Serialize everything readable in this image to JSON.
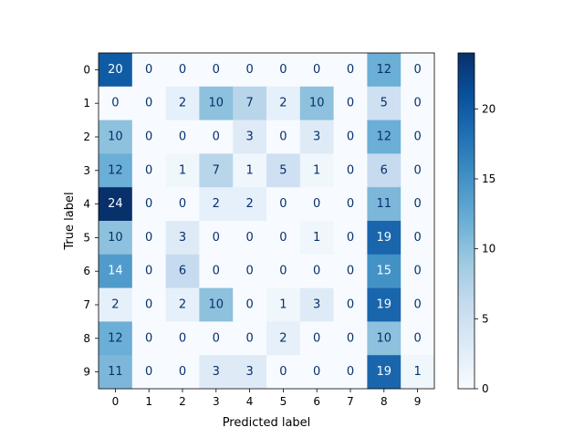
{
  "chart_data": {
    "type": "heatmap",
    "xlabel": "Predicted label",
    "ylabel": "True label",
    "x_categories": [
      "0",
      "1",
      "2",
      "3",
      "4",
      "5",
      "6",
      "7",
      "8",
      "9"
    ],
    "y_categories": [
      "0",
      "1",
      "2",
      "3",
      "4",
      "5",
      "6",
      "7",
      "8",
      "9"
    ],
    "matrix": [
      [
        20,
        0,
        0,
        0,
        0,
        0,
        0,
        0,
        12,
        0
      ],
      [
        0,
        0,
        2,
        10,
        7,
        2,
        10,
        0,
        5,
        0
      ],
      [
        10,
        0,
        0,
        0,
        3,
        0,
        3,
        0,
        12,
        0
      ],
      [
        12,
        0,
        1,
        7,
        1,
        5,
        1,
        0,
        6,
        0
      ],
      [
        24,
        0,
        0,
        2,
        2,
        0,
        0,
        0,
        11,
        0
      ],
      [
        10,
        0,
        3,
        0,
        0,
        0,
        1,
        0,
        19,
        0
      ],
      [
        14,
        0,
        6,
        0,
        0,
        0,
        0,
        0,
        15,
        0
      ],
      [
        2,
        0,
        2,
        10,
        0,
        1,
        3,
        0,
        19,
        0
      ],
      [
        12,
        0,
        0,
        0,
        0,
        2,
        0,
        0,
        10,
        0
      ],
      [
        11,
        0,
        0,
        3,
        3,
        0,
        0,
        0,
        19,
        1
      ]
    ],
    "colormap": "Blues",
    "vmin": 0,
    "vmax": 24,
    "colorbar_ticks": [
      0,
      5,
      10,
      15,
      20
    ],
    "grid": false
  }
}
